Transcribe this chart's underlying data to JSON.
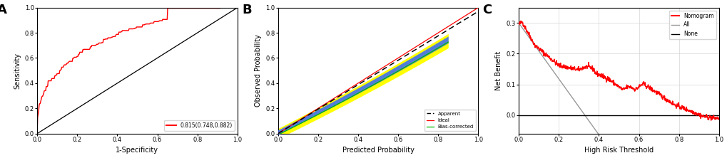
{
  "panel_A": {
    "label": "A",
    "xlabel": "1-Specificity",
    "ylabel": "Sensitivity",
    "xlim": [
      0,
      1
    ],
    "ylim": [
      0,
      1
    ],
    "xticks": [
      0.0,
      0.2,
      0.4,
      0.6,
      0.8,
      1.0
    ],
    "yticks": [
      0.0,
      0.2,
      0.4,
      0.6,
      0.8,
      1.0
    ],
    "legend_label": "0.815(0.748,0.882)",
    "roc_color": "#FF0000",
    "diag_color": "#000000"
  },
  "panel_B": {
    "label": "B",
    "xlabel": "Predicted Probability",
    "ylabel": "Observed Probability",
    "xlim": [
      0,
      1
    ],
    "ylim": [
      0,
      1
    ],
    "xticks": [
      0.0,
      0.2,
      0.4,
      0.6,
      0.8,
      1.0
    ],
    "yticks": [
      0.0,
      0.2,
      0.4,
      0.6,
      0.8,
      1.0
    ],
    "apparent_color": "#000000",
    "ideal_color": "#FF0000",
    "bias_corrected_color": "#00BB00",
    "band_yellow_color": "#FFFF00",
    "band_blue_color": "#3366FF"
  },
  "panel_C": {
    "label": "C",
    "xlabel": "High Risk Threshold",
    "ylabel": "Net Benefit",
    "xlim": [
      0,
      1
    ],
    "ylim": [
      -0.06,
      0.35
    ],
    "xticks": [
      0.0,
      0.2,
      0.4,
      0.6,
      0.8,
      1.0
    ],
    "yticks": [
      0.0,
      0.1,
      0.2,
      0.3
    ],
    "nomogram_color": "#FF0000",
    "all_color": "#999999",
    "none_color": "#000000"
  },
  "bg_color": "#FFFFFF",
  "label_fontsize": 13,
  "axis_fontsize": 7,
  "tick_fontsize": 6
}
